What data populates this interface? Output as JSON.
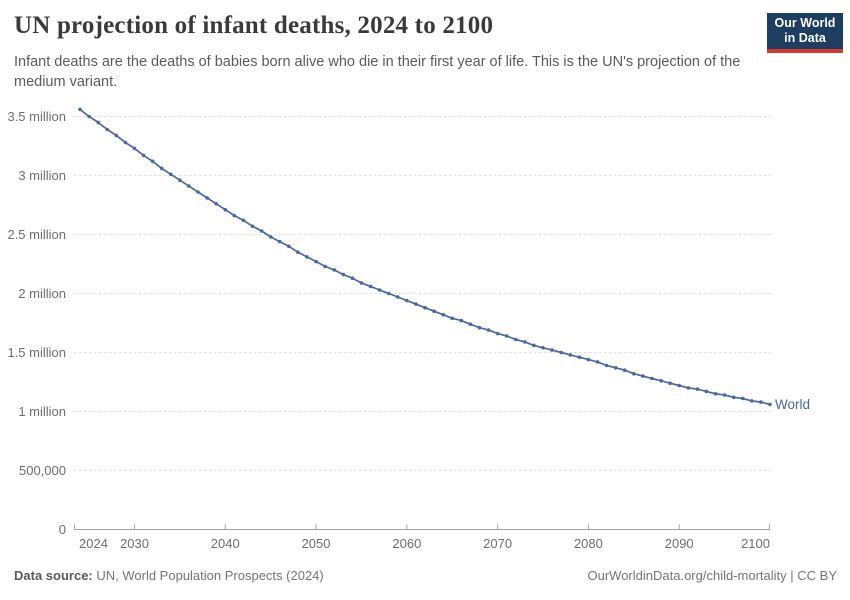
{
  "header": {
    "title": "UN projection of infant deaths, 2024 to 2100",
    "subtitle": "Infant deaths are the deaths of babies born alive who die in their first year of life. This is the UN's projection of the medium variant."
  },
  "logo": {
    "line1": "Our World",
    "line2": "in Data",
    "bg_color": "#1d3d63",
    "accent_color": "#d4392b"
  },
  "footer": {
    "source_label": "Data source:",
    "source_value": " UN, World Population Prospects (2024)",
    "credit": "OurWorldinData.org/child-mortality | CC BY"
  },
  "colors": {
    "line": "#4a68a2",
    "grid": "#dedede",
    "axis": "#a3a3a3",
    "tick_text": "#6e6e6e",
    "end_label": "#4a68a2"
  },
  "chart_data": {
    "type": "line",
    "title": "UN projection of infant deaths, 2024 to 2100",
    "xlabel": "",
    "ylabel": "",
    "unit": "million infant deaths",
    "xlim": [
      2024,
      2100
    ],
    "ylim": [
      0,
      3.6
    ],
    "grid": "horizontal-dashed",
    "legend_position": "end-of-line",
    "xticks": [
      2024,
      2030,
      2040,
      2050,
      2060,
      2070,
      2080,
      2090,
      2100
    ],
    "yticks": [
      {
        "value": 0,
        "label": "0"
      },
      {
        "value": 0.5,
        "label": "500,000"
      },
      {
        "value": 1,
        "label": "1 million"
      },
      {
        "value": 1.5,
        "label": "1.5 million"
      },
      {
        "value": 2,
        "label": "2 million"
      },
      {
        "value": 2.5,
        "label": "2.5 million"
      },
      {
        "value": 3,
        "label": "3 million"
      },
      {
        "value": 3.5,
        "label": "3.5 million"
      }
    ],
    "x": [
      2024,
      2025,
      2026,
      2027,
      2028,
      2029,
      2030,
      2031,
      2032,
      2033,
      2034,
      2035,
      2036,
      2037,
      2038,
      2039,
      2040,
      2041,
      2042,
      2043,
      2044,
      2045,
      2046,
      2047,
      2048,
      2049,
      2050,
      2051,
      2052,
      2053,
      2054,
      2055,
      2056,
      2057,
      2058,
      2059,
      2060,
      2061,
      2062,
      2063,
      2064,
      2065,
      2066,
      2067,
      2068,
      2069,
      2070,
      2071,
      2072,
      2073,
      2074,
      2075,
      2076,
      2077,
      2078,
      2079,
      2080,
      2081,
      2082,
      2083,
      2084,
      2085,
      2086,
      2087,
      2088,
      2089,
      2090,
      2091,
      2092,
      2093,
      2094,
      2095,
      2096,
      2097,
      2098,
      2099,
      2100
    ],
    "series": [
      {
        "name": "World",
        "values_millions": [
          3.56,
          3.5,
          3.45,
          3.39,
          3.34,
          3.28,
          3.23,
          3.17,
          3.12,
          3.06,
          3.01,
          2.96,
          2.91,
          2.86,
          2.81,
          2.76,
          2.71,
          2.66,
          2.62,
          2.57,
          2.53,
          2.48,
          2.44,
          2.4,
          2.35,
          2.31,
          2.27,
          2.23,
          2.2,
          2.16,
          2.13,
          2.09,
          2.06,
          2.03,
          2.0,
          1.97,
          1.94,
          1.91,
          1.88,
          1.85,
          1.82,
          1.79,
          1.77,
          1.74,
          1.71,
          1.69,
          1.66,
          1.64,
          1.61,
          1.59,
          1.56,
          1.54,
          1.52,
          1.5,
          1.48,
          1.46,
          1.44,
          1.42,
          1.39,
          1.37,
          1.35,
          1.32,
          1.3,
          1.28,
          1.26,
          1.24,
          1.22,
          1.2,
          1.19,
          1.17,
          1.15,
          1.14,
          1.12,
          1.11,
          1.09,
          1.08,
          1.06
        ]
      }
    ]
  }
}
